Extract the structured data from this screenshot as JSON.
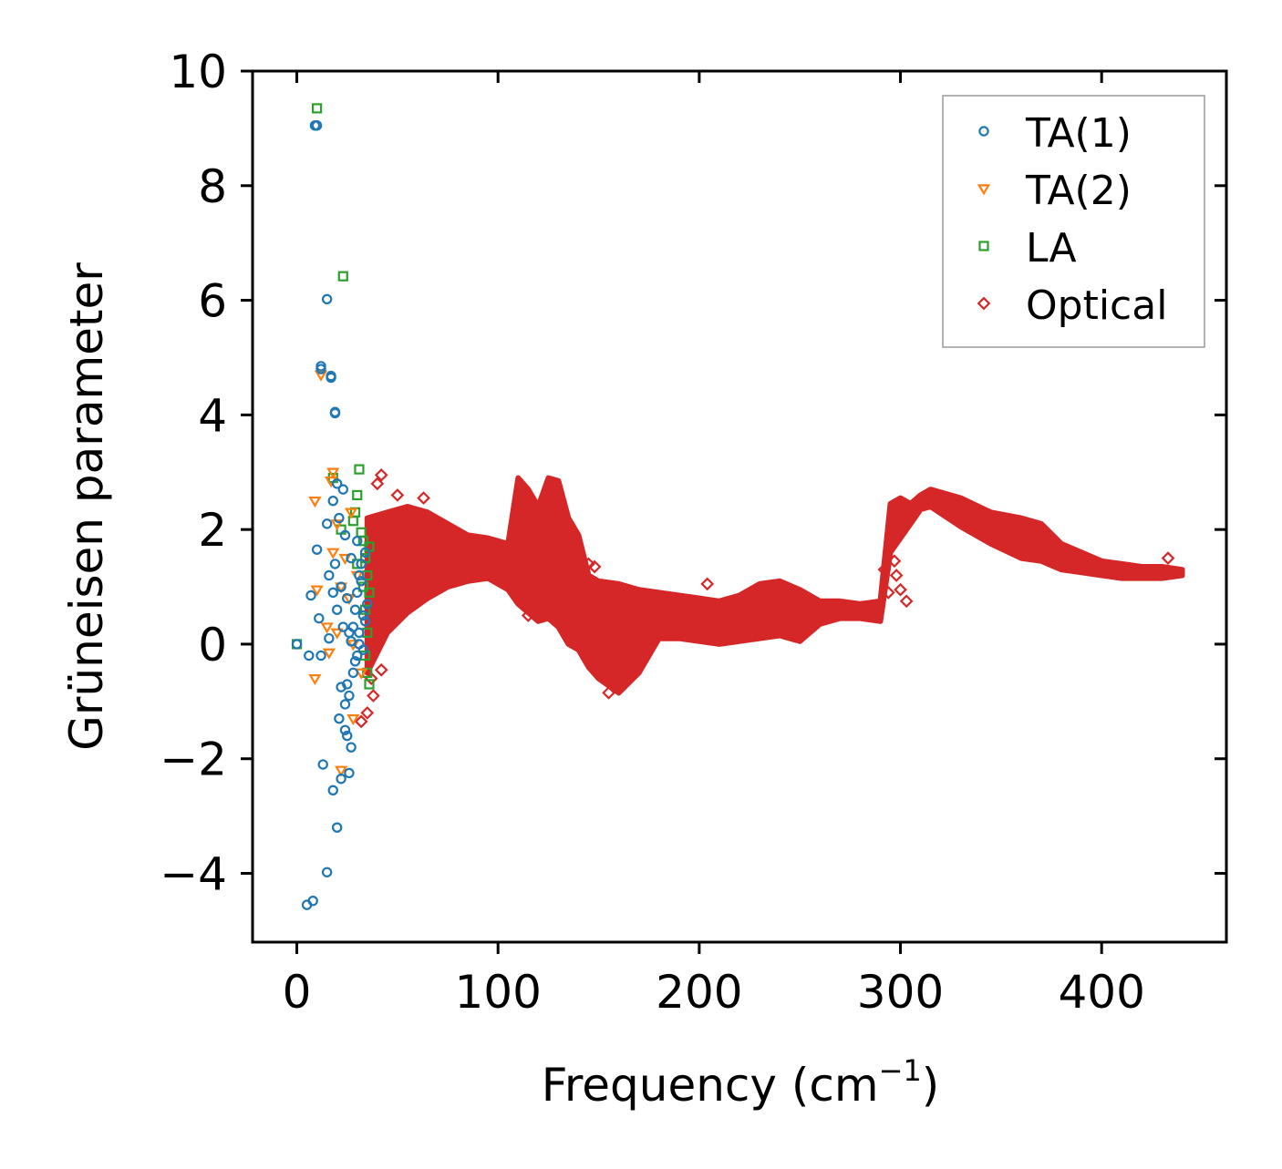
{
  "chart_data": {
    "type": "scatter",
    "title": "",
    "xlabel": "Frequency (cm",
    "xlabel_sup": "−1",
    "xlabel_suffix": ")",
    "ylabel": "Grüneisen parameter",
    "xlim": [
      -22,
      462
    ],
    "ylim": [
      -5.2,
      10
    ],
    "xticks": [
      0,
      100,
      200,
      300,
      400
    ],
    "xtick_labels": [
      "0",
      "100",
      "200",
      "300",
      "400"
    ],
    "yticks": [
      -4,
      -2,
      0,
      2,
      4,
      6,
      8,
      10
    ],
    "ytick_labels": [
      "−4",
      "−2",
      "0",
      "2",
      "4",
      "6",
      "8",
      "10"
    ],
    "legend_position": "top-right",
    "series": [
      {
        "name": "TA(1)",
        "marker": "circle",
        "color": "#1f77b4",
        "points": [
          [
            0,
            0
          ],
          [
            5,
            -4.55
          ],
          [
            8,
            -4.48
          ],
          [
            15,
            -3.98
          ],
          [
            20,
            -3.2
          ],
          [
            13,
            -2.1
          ],
          [
            18,
            -2.55
          ],
          [
            22,
            -2.35
          ],
          [
            26,
            -2.25
          ],
          [
            27,
            -1.8
          ],
          [
            21,
            -1.3
          ],
          [
            24,
            -1.5
          ],
          [
            25,
            -1.6
          ],
          [
            22,
            -0.75
          ],
          [
            25,
            -0.7
          ],
          [
            26,
            -0.9
          ],
          [
            24,
            -1.05
          ],
          [
            10,
            9.05
          ],
          [
            9,
            9.05
          ],
          [
            15,
            6.02
          ],
          [
            12,
            4.85
          ],
          [
            12,
            4.8
          ],
          [
            17,
            4.68
          ],
          [
            17,
            4.65
          ],
          [
            19,
            4.05
          ],
          [
            19,
            4.03
          ],
          [
            10,
            1.65
          ],
          [
            7,
            0.85
          ],
          [
            11,
            0.45
          ],
          [
            6,
            -0.2
          ],
          [
            12,
            -0.2
          ],
          [
            16,
            0.1
          ],
          [
            20,
            2.8
          ],
          [
            15,
            2.1
          ],
          [
            18,
            2.5
          ],
          [
            23,
            2.7
          ],
          [
            21,
            2.2
          ],
          [
            24,
            1.9
          ],
          [
            19,
            1.4
          ],
          [
            16,
            1.2
          ],
          [
            22,
            1.0
          ],
          [
            25,
            0.8
          ],
          [
            27,
            1.5
          ],
          [
            29,
            0.6
          ],
          [
            30,
            1.8
          ],
          [
            28,
            0.3
          ],
          [
            31,
            0.2
          ],
          [
            32,
            1.1
          ],
          [
            33,
            0.5
          ],
          [
            29,
            -0.3
          ],
          [
            31,
            0.0
          ],
          [
            34,
            0.4
          ],
          [
            30,
            0.9
          ],
          [
            26,
            0.2
          ],
          [
            23,
            0.3
          ],
          [
            20,
            0.6
          ],
          [
            18,
            0.9
          ],
          [
            35,
            0.7
          ],
          [
            34,
            1.6
          ],
          [
            32,
            1.4
          ],
          [
            27,
            0.05
          ],
          [
            28,
            -0.5
          ],
          [
            30,
            -0.2
          ],
          [
            33,
            -0.1
          ],
          [
            31,
            1.2
          ]
        ]
      },
      {
        "name": "TA(2)",
        "marker": "triangle-down",
        "color": "#ff7f0e",
        "points": [
          [
            9,
            2.5
          ],
          [
            18,
            3.0
          ],
          [
            17,
            2.85
          ],
          [
            10,
            0.95
          ],
          [
            9,
            -0.6
          ],
          [
            15,
            0.3
          ],
          [
            16,
            -0.15
          ],
          [
            20,
            0.2
          ],
          [
            22,
            -2.2
          ],
          [
            28,
            -1.3
          ],
          [
            12,
            4.7
          ],
          [
            20,
            2.1
          ],
          [
            24,
            1.5
          ],
          [
            26,
            0.8
          ],
          [
            28,
            0.0
          ],
          [
            30,
            1.2
          ],
          [
            32,
            -0.5
          ],
          [
            22,
            1.0
          ],
          [
            18,
            1.6
          ],
          [
            27,
            2.3
          ]
        ]
      },
      {
        "name": "LA",
        "marker": "square",
        "color": "#2ca02c",
        "points": [
          [
            0,
            0.0
          ],
          [
            10,
            9.35
          ],
          [
            23,
            6.42
          ],
          [
            31,
            3.05
          ],
          [
            18,
            2.9
          ],
          [
            30,
            2.6
          ],
          [
            29,
            2.3
          ],
          [
            22,
            2.0
          ],
          [
            33,
            1.8
          ],
          [
            34,
            1.5
          ],
          [
            35,
            1.2
          ],
          [
            36,
            0.9
          ],
          [
            34,
            0.6
          ],
          [
            35,
            0.2
          ],
          [
            34,
            -0.2
          ],
          [
            35,
            -0.5
          ],
          [
            36,
            -0.7
          ],
          [
            33,
            1.0
          ],
          [
            36,
            1.7
          ],
          [
            32,
            1.95
          ],
          [
            30,
            1.4
          ],
          [
            28,
            2.15
          ]
        ]
      },
      {
        "name": "Optical",
        "marker": "diamond",
        "color": "#d62728",
        "points": [
          [
            42,
            2.95
          ],
          [
            40,
            2.8
          ],
          [
            50,
            2.6
          ],
          [
            63,
            2.55
          ],
          [
            38,
            -0.9
          ],
          [
            35,
            -1.2
          ],
          [
            32,
            -1.35
          ],
          [
            37,
            -0.6
          ],
          [
            42,
            -0.45
          ],
          [
            145,
            1.4
          ],
          [
            148,
            1.35
          ],
          [
            155,
            -0.85
          ],
          [
            204,
            1.05
          ],
          [
            232,
            0.35
          ],
          [
            295,
            1.7
          ],
          [
            297,
            1.45
          ],
          [
            292,
            1.3
          ],
          [
            294,
            0.9
          ],
          [
            300,
            0.95
          ],
          [
            298,
            1.2
          ],
          [
            303,
            0.75
          ],
          [
            433,
            1.5
          ],
          [
            123,
            1.05
          ],
          [
            115,
            0.5
          ],
          [
            130,
            0.45
          ]
        ],
        "band_upper": [
          [
            35,
            2.2
          ],
          [
            45,
            2.3
          ],
          [
            55,
            2.4
          ],
          [
            65,
            2.3
          ],
          [
            75,
            2.1
          ],
          [
            85,
            1.9
          ],
          [
            95,
            1.85
          ],
          [
            105,
            1.75
          ],
          [
            110,
            2.9
          ],
          [
            115,
            2.7
          ],
          [
            120,
            2.4
          ],
          [
            125,
            2.9
          ],
          [
            130,
            2.85
          ],
          [
            135,
            2.2
          ],
          [
            140,
            1.9
          ],
          [
            145,
            1.2
          ],
          [
            150,
            1.1
          ],
          [
            160,
            1.05
          ],
          [
            170,
            0.95
          ],
          [
            180,
            0.9
          ],
          [
            190,
            0.85
          ],
          [
            200,
            0.8
          ],
          [
            210,
            0.75
          ],
          [
            220,
            0.85
          ],
          [
            230,
            1.05
          ],
          [
            240,
            1.1
          ],
          [
            250,
            0.95
          ],
          [
            260,
            0.75
          ],
          [
            270,
            0.75
          ],
          [
            280,
            0.7
          ],
          [
            290,
            0.75
          ],
          [
            295,
            2.45
          ],
          [
            300,
            2.55
          ],
          [
            305,
            2.45
          ],
          [
            310,
            2.6
          ],
          [
            315,
            2.7
          ],
          [
            330,
            2.55
          ],
          [
            345,
            2.3
          ],
          [
            360,
            2.2
          ],
          [
            370,
            2.1
          ],
          [
            380,
            1.75
          ],
          [
            390,
            1.6
          ],
          [
            400,
            1.45
          ],
          [
            410,
            1.4
          ],
          [
            420,
            1.35
          ],
          [
            430,
            1.35
          ],
          [
            440,
            1.3
          ]
        ],
        "band_lower": [
          [
            35,
            -0.5
          ],
          [
            45,
            0.2
          ],
          [
            55,
            0.55
          ],
          [
            65,
            0.8
          ],
          [
            75,
            1.0
          ],
          [
            85,
            1.1
          ],
          [
            95,
            1.15
          ],
          [
            105,
            0.95
          ],
          [
            110,
            0.7
          ],
          [
            115,
            0.55
          ],
          [
            120,
            0.4
          ],
          [
            125,
            0.45
          ],
          [
            130,
            0.3
          ],
          [
            135,
            0.0
          ],
          [
            140,
            -0.1
          ],
          [
            145,
            -0.4
          ],
          [
            150,
            -0.6
          ],
          [
            160,
            -0.85
          ],
          [
            170,
            -0.5
          ],
          [
            180,
            0.1
          ],
          [
            190,
            0.1
          ],
          [
            200,
            0.05
          ],
          [
            210,
            0.0
          ],
          [
            220,
            0.05
          ],
          [
            230,
            0.1
          ],
          [
            240,
            0.15
          ],
          [
            250,
            0.05
          ],
          [
            260,
            0.35
          ],
          [
            270,
            0.45
          ],
          [
            280,
            0.45
          ],
          [
            290,
            0.4
          ],
          [
            295,
            1.6
          ],
          [
            300,
            1.85
          ],
          [
            305,
            2.1
          ],
          [
            310,
            2.35
          ],
          [
            315,
            2.4
          ],
          [
            330,
            2.05
          ],
          [
            345,
            1.75
          ],
          [
            360,
            1.5
          ],
          [
            370,
            1.45
          ],
          [
            380,
            1.3
          ],
          [
            390,
            1.25
          ],
          [
            400,
            1.2
          ],
          [
            410,
            1.15
          ],
          [
            420,
            1.15
          ],
          [
            430,
            1.15
          ],
          [
            440,
            1.2
          ]
        ]
      }
    ]
  }
}
